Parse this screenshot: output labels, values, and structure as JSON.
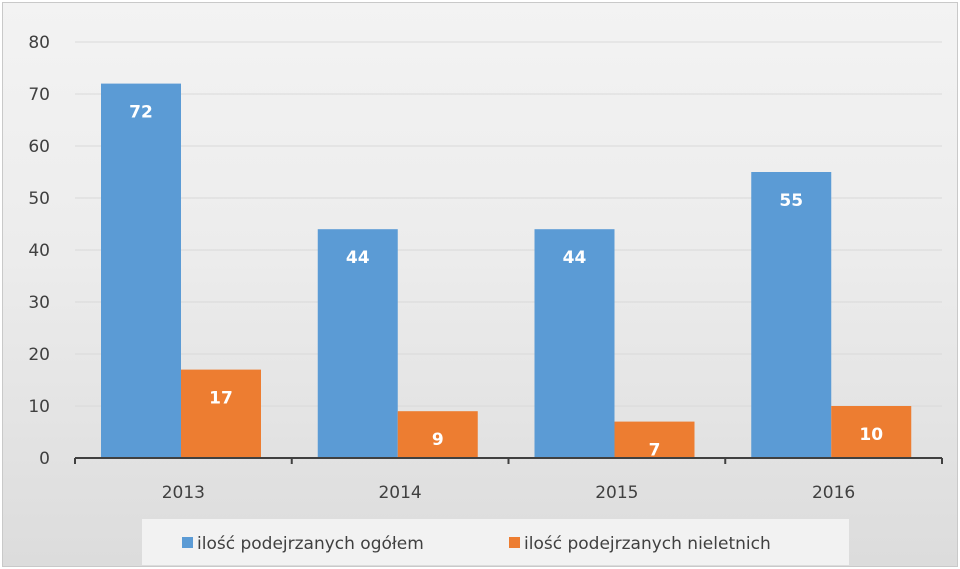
{
  "chart_data": {
    "type": "bar",
    "title": "",
    "xlabel": "",
    "ylabel": "",
    "categories": [
      "2013",
      "2014",
      "2015",
      "2016"
    ],
    "series": [
      {
        "name": "ilość podejrzanych ogółem",
        "values": [
          72,
          44,
          44,
          55
        ],
        "color": "#5b9bd5"
      },
      {
        "name": "ilość podejrzanych nieletnich",
        "values": [
          17,
          9,
          7,
          10
        ],
        "color": "#ed7d31"
      }
    ],
    "ylim": [
      0,
      80
    ],
    "yticks": [
      "0",
      "10",
      "20",
      "30",
      "40",
      "50",
      "60",
      "70",
      "80"
    ],
    "grid": true,
    "legend_position": "bottom",
    "data_labels": true
  }
}
